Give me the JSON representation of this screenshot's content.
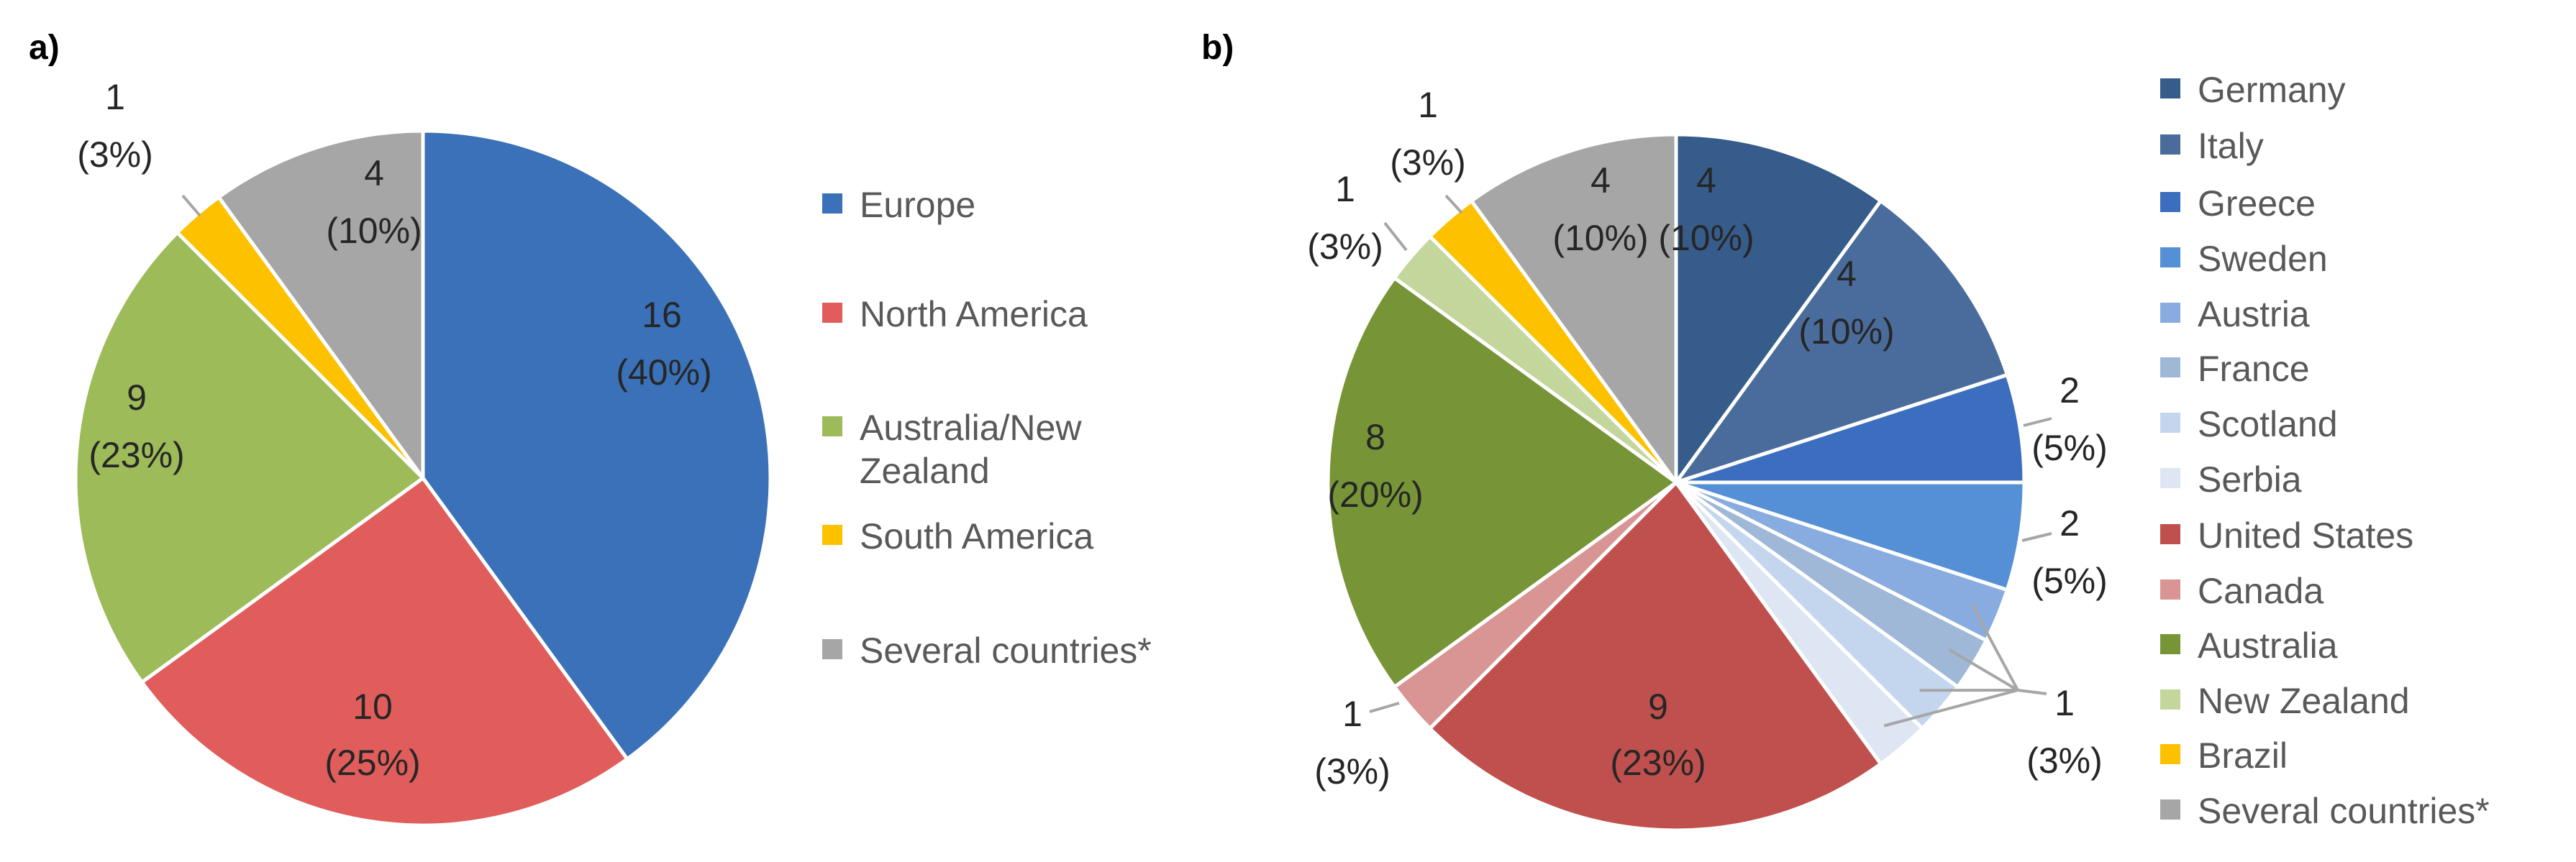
{
  "chart_data": [
    {
      "panel": "a)",
      "type": "pie",
      "title": "",
      "slices": [
        {
          "label": "Europe",
          "value": 16,
          "percent": "40%",
          "color": "#3a71b8"
        },
        {
          "label": "North America",
          "value": 10,
          "percent": "25%",
          "color": "#e05d5b"
        },
        {
          "label": "Australia/New Zealand",
          "value": 9,
          "percent": "23%",
          "color": "#9ebb59"
        },
        {
          "label": "South America",
          "value": 1,
          "percent": "3%",
          "color": "#fdc100"
        },
        {
          "label": "Several countries*",
          "value": 4,
          "percent": "10%",
          "color": "#a6a6a6"
        }
      ],
      "legend_position": "right"
    },
    {
      "panel": "b)",
      "type": "pie",
      "title": "",
      "slices": [
        {
          "label": "Germany",
          "value": 4,
          "percent": "10%",
          "color": "#365c8b"
        },
        {
          "label": "Italy",
          "value": 4,
          "percent": "10%",
          "color": "#4a6c9c"
        },
        {
          "label": "Greece",
          "value": 2,
          "percent": "5%",
          "color": "#3b6ebe"
        },
        {
          "label": "Sweden",
          "value": 2,
          "percent": "5%",
          "color": "#5590d6"
        },
        {
          "label": "Austria",
          "value": 1,
          "percent": "3%",
          "color": "#88ace0"
        },
        {
          "label": "France",
          "value": 1,
          "percent": "3%",
          "color": "#9fb8d8"
        },
        {
          "label": "Scotland",
          "value": 1,
          "percent": "3%",
          "color": "#c3d6ee"
        },
        {
          "label": "Serbia",
          "value": 1,
          "percent": "3%",
          "color": "#dde6f2"
        },
        {
          "label": "United States",
          "value": 9,
          "percent": "23%",
          "color": "#c0504d"
        },
        {
          "label": "Canada",
          "value": 1,
          "percent": "3%",
          "color": "#d99594"
        },
        {
          "label": "Australia",
          "value": 8,
          "percent": "20%",
          "color": "#779537"
        },
        {
          "label": "New Zealand",
          "value": 1,
          "percent": "3%",
          "color": "#c3d69b"
        },
        {
          "label": "Brazil",
          "value": 1,
          "percent": "3%",
          "color": "#fdc100"
        },
        {
          "label": "Several countries*",
          "value": 4,
          "percent": "10%",
          "color": "#a6a6a6"
        }
      ],
      "legend_position": "right"
    }
  ]
}
